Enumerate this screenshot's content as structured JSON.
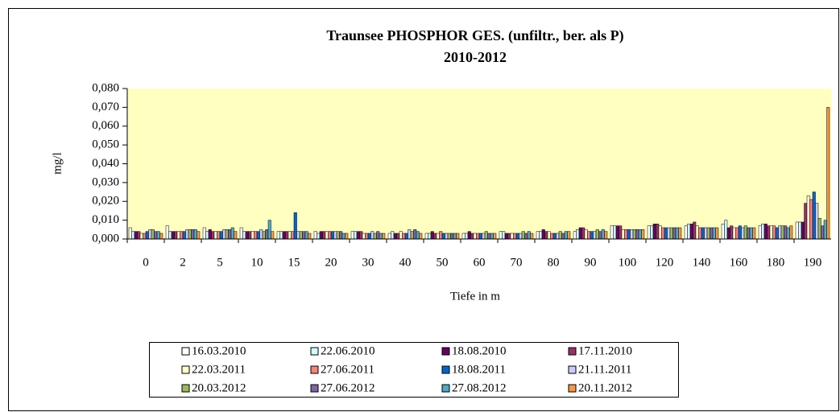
{
  "chart_data": {
    "type": "bar",
    "title": "Traunsee PHOSPHOR GES. (unfiltr., ber. als P)",
    "subtitle": "2010-2012",
    "x_label": "Tiefe in m",
    "y_label": "mg/l",
    "categories": [
      "0",
      "2",
      "5",
      "10",
      "15",
      "20",
      "30",
      "40",
      "50",
      "60",
      "70",
      "80",
      "90",
      "100",
      "120",
      "140",
      "160",
      "180",
      "190"
    ],
    "ylim": [
      0,
      0.08
    ],
    "yticks": [
      {
        "value": 0,
        "label": "0,000"
      },
      {
        "value": 0.01,
        "label": "0,010"
      },
      {
        "value": 0.02,
        "label": "0,020"
      },
      {
        "value": 0.03,
        "label": "0,030"
      },
      {
        "value": 0.04,
        "label": "0,040"
      },
      {
        "value": 0.05,
        "label": "0,050"
      },
      {
        "value": 0.06,
        "label": "0,060"
      },
      {
        "value": 0.07,
        "label": "0,070"
      },
      {
        "value": 0.08,
        "label": "0,080"
      }
    ],
    "grid": false,
    "legend": "bottom",
    "series": [
      {
        "name": "16.03.2010",
        "color": "#ffffff",
        "values": [
          0.006,
          0.007,
          0.006,
          0.006,
          0.004,
          0.004,
          0.004,
          0.003,
          0.003,
          0.003,
          0.004,
          0.004,
          0.004,
          0.007,
          0.007,
          0.007,
          0.008,
          0.007,
          0.009
        ]
      },
      {
        "name": "22.06.2010",
        "color": "#ccffff",
        "values": [
          0.004,
          0.004,
          0.004,
          0.004,
          0.004,
          0.003,
          0.004,
          0.004,
          0.003,
          0.003,
          0.004,
          0.004,
          0.005,
          0.007,
          0.007,
          0.008,
          0.01,
          0.008,
          0.009
        ]
      },
      {
        "name": "18.08.2010",
        "color": "#660066",
        "values": [
          0.004,
          0.004,
          0.005,
          0.004,
          0.004,
          0.004,
          0.004,
          0.003,
          0.004,
          0.004,
          0.003,
          0.005,
          0.006,
          0.007,
          0.008,
          0.008,
          0.006,
          0.008,
          0.009
        ]
      },
      {
        "name": "17.11.2010",
        "color": "#993366",
        "values": [
          0.004,
          0.004,
          0.004,
          0.004,
          0.004,
          0.004,
          0.004,
          0.003,
          0.003,
          0.003,
          0.003,
          0.004,
          0.006,
          0.007,
          0.008,
          0.009,
          0.007,
          0.007,
          0.019
        ]
      },
      {
        "name": "22.03.2011",
        "color": "#ffffcc",
        "values": [
          0.003,
          0.004,
          0.004,
          0.004,
          0.004,
          0.004,
          0.003,
          0.004,
          0.003,
          0.003,
          0.003,
          0.004,
          0.005,
          0.005,
          0.007,
          0.007,
          0.006,
          0.007,
          0.023
        ]
      },
      {
        "name": "27.06.2011",
        "color": "#ff8080",
        "values": [
          0.003,
          0.004,
          0.004,
          0.004,
          0.004,
          0.004,
          0.003,
          0.003,
          0.004,
          0.003,
          0.003,
          0.003,
          0.004,
          0.005,
          0.006,
          0.006,
          0.006,
          0.007,
          0.021
        ]
      },
      {
        "name": "18.08.2011",
        "color": "#0066cc",
        "values": [
          0.004,
          0.004,
          0.004,
          0.004,
          0.014,
          0.004,
          0.003,
          0.003,
          0.003,
          0.003,
          0.003,
          0.003,
          0.004,
          0.005,
          0.006,
          0.006,
          0.007,
          0.006,
          0.025
        ]
      },
      {
        "name": "21.11.2011",
        "color": "#ccccff",
        "values": [
          0.005,
          0.005,
          0.005,
          0.005,
          0.004,
          0.004,
          0.004,
          0.005,
          0.003,
          0.003,
          0.003,
          0.003,
          0.004,
          0.005,
          0.006,
          0.006,
          0.006,
          0.007,
          0.019
        ]
      },
      {
        "name": "20.03.2012",
        "color": "#9bbb59",
        "values": [
          0.005,
          0.005,
          0.005,
          0.004,
          0.004,
          0.004,
          0.003,
          0.004,
          0.003,
          0.004,
          0.004,
          0.004,
          0.005,
          0.005,
          0.006,
          0.006,
          0.007,
          0.007,
          0.011
        ]
      },
      {
        "name": "27.06.2012",
        "color": "#8064a2",
        "values": [
          0.004,
          0.005,
          0.005,
          0.005,
          0.004,
          0.004,
          0.004,
          0.005,
          0.003,
          0.003,
          0.003,
          0.003,
          0.004,
          0.005,
          0.006,
          0.006,
          0.006,
          0.007,
          0.007
        ]
      },
      {
        "name": "27.08.2012",
        "color": "#4bacc6",
        "values": [
          0.004,
          0.005,
          0.006,
          0.01,
          0.004,
          0.003,
          0.003,
          0.004,
          0.003,
          0.003,
          0.004,
          0.004,
          0.005,
          0.005,
          0.006,
          0.006,
          0.006,
          0.006,
          0.01
        ]
      },
      {
        "name": "20.11.2012",
        "color": "#f79646",
        "values": [
          0.003,
          0.004,
          0.004,
          0.004,
          0.003,
          0.003,
          0.003,
          0.003,
          0.003,
          0.003,
          0.003,
          0.004,
          0.004,
          0.005,
          0.006,
          0.006,
          0.006,
          0.007,
          0.07
        ]
      }
    ]
  }
}
